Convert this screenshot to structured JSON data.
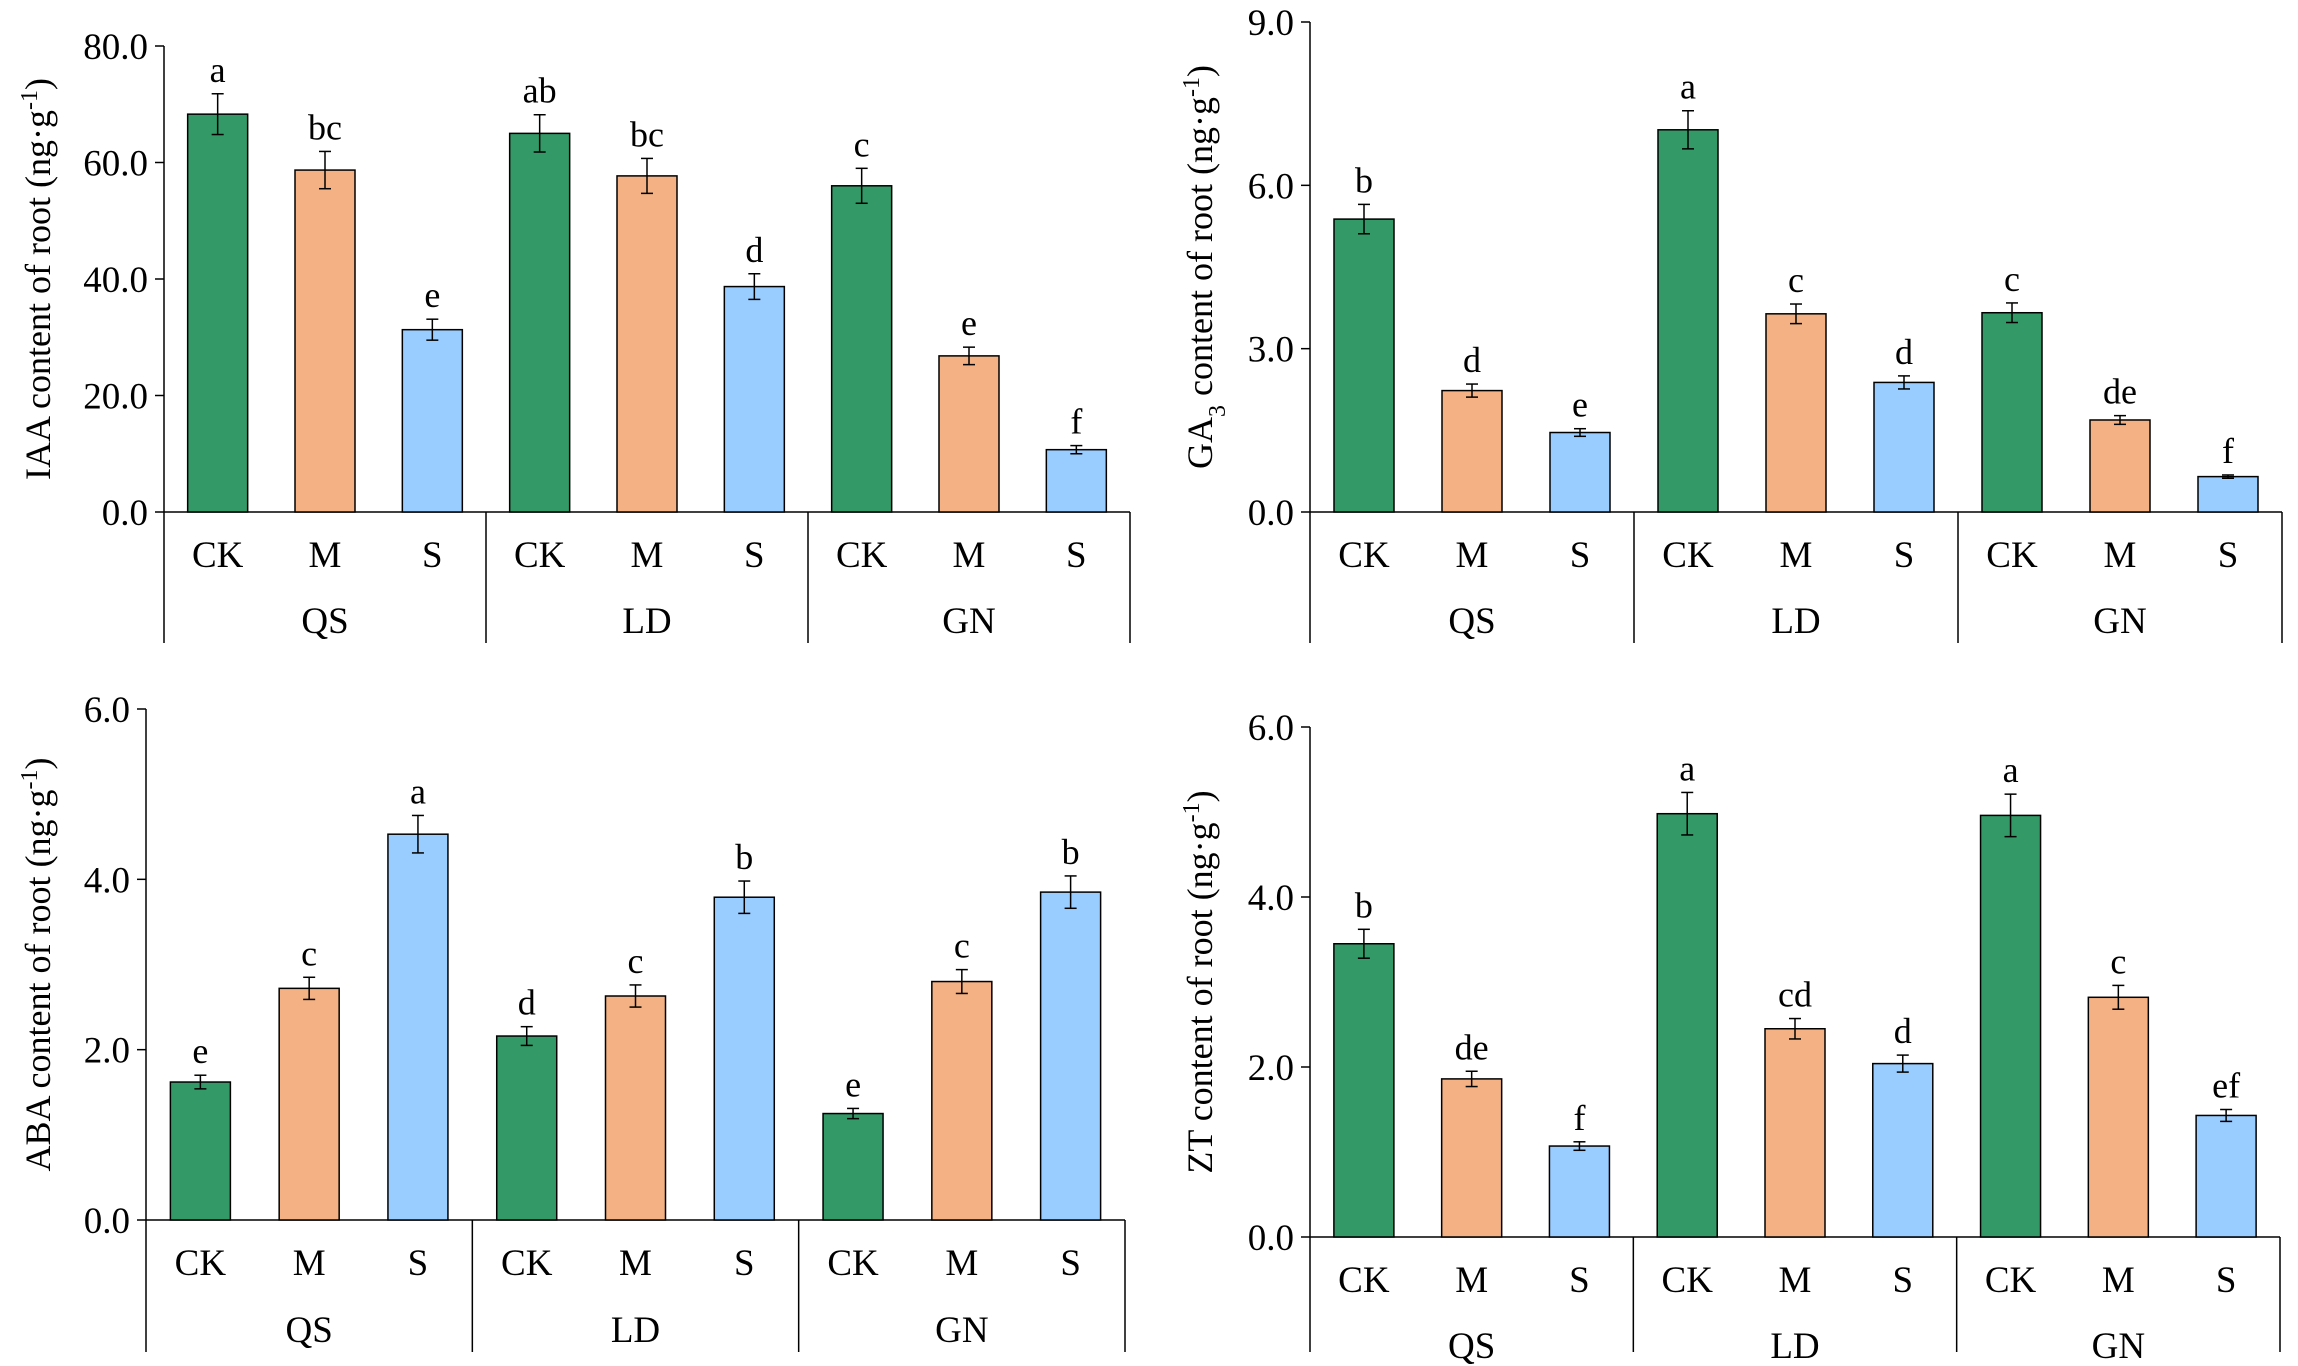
{
  "chart_data": [
    {
      "type": "bar",
      "ylabel": "IAA content of root (ng·g⁻¹)",
      "ylabel_parts": [
        {
          "t": "IAA content of root (ng·g"
        },
        {
          "t": "-1",
          "sup": true
        },
        {
          "t": ")"
        }
      ],
      "ylim": [
        0,
        80
      ],
      "yticks": [
        "0.0",
        "20.0",
        "40.0",
        "60.0",
        "80.0"
      ],
      "groups": [
        "QS",
        "LD",
        "GN"
      ],
      "treatments": [
        "CK",
        "M",
        "S"
      ],
      "values": [
        68.3,
        58.7,
        31.3,
        65.0,
        57.7,
        38.7,
        56.0,
        26.8,
        10.7
      ],
      "errors": [
        3.5,
        3.2,
        1.8,
        3.2,
        3.0,
        2.2,
        3.0,
        1.5,
        0.7
      ],
      "letters": [
        "a",
        "bc",
        "e",
        "ab",
        "bc",
        "d",
        "c",
        "e",
        "f"
      ]
    },
    {
      "type": "bar",
      "ylabel": "GA₃ content of root (ng·g⁻¹)",
      "ylabel_parts": [
        {
          "t": "GA"
        },
        {
          "t": "3",
          "sub": true
        },
        {
          "t": " content of root (ng·g"
        },
        {
          "t": "-1",
          "sup": true
        },
        {
          "t": ")"
        }
      ],
      "ylim": [
        0,
        9
      ],
      "yticks": [
        "0.0",
        "3.0",
        "6.0",
        "9.0"
      ],
      "groups": [
        "QS",
        "LD",
        "GN"
      ],
      "treatments": [
        "CK",
        "M",
        "S"
      ],
      "values": [
        5.38,
        2.23,
        1.46,
        7.02,
        3.64,
        2.38,
        3.66,
        1.69,
        0.65
      ],
      "errors": [
        0.27,
        0.12,
        0.07,
        0.35,
        0.18,
        0.12,
        0.18,
        0.08,
        0.03
      ],
      "letters": [
        "b",
        "d",
        "e",
        "a",
        "c",
        "d",
        "c",
        "de",
        "f"
      ]
    },
    {
      "type": "bar",
      "ylabel": "ABA content of root (ng·g⁻¹)",
      "ylabel_parts": [
        {
          "t": "ABA content of root (ng·g"
        },
        {
          "t": "-1",
          "sup": true
        },
        {
          "t": ")"
        }
      ],
      "ylim": [
        0,
        6
      ],
      "yticks": [
        "0.0",
        "2.0",
        "4.0",
        "6.0"
      ],
      "groups": [
        "QS",
        "LD",
        "GN"
      ],
      "treatments": [
        "CK",
        "M",
        "S"
      ],
      "values": [
        1.62,
        2.72,
        4.53,
        2.16,
        2.63,
        3.79,
        1.25,
        2.8,
        3.85
      ],
      "errors": [
        0.08,
        0.13,
        0.22,
        0.11,
        0.13,
        0.19,
        0.06,
        0.14,
        0.19
      ],
      "letters": [
        "e",
        "c",
        "a",
        "d",
        "c",
        "b",
        "e",
        "c",
        "b"
      ]
    },
    {
      "type": "bar",
      "ylabel": "ZT content of root (ng·g⁻¹)",
      "ylabel_parts": [
        {
          "t": "ZT content of root (ng·g"
        },
        {
          "t": "-1",
          "sup": true
        },
        {
          "t": ")"
        }
      ],
      "ylim": [
        0,
        6
      ],
      "yticks": [
        "0.0",
        "2.0",
        "4.0",
        "6.0"
      ],
      "groups": [
        "QS",
        "LD",
        "GN"
      ],
      "treatments": [
        "CK",
        "M",
        "S"
      ],
      "values": [
        3.45,
        1.86,
        1.07,
        4.98,
        2.45,
        2.04,
        4.96,
        2.82,
        1.43
      ],
      "errors": [
        0.17,
        0.09,
        0.05,
        0.25,
        0.12,
        0.1,
        0.25,
        0.14,
        0.07
      ],
      "letters": [
        "b",
        "de",
        "f",
        "a",
        "cd",
        "d",
        "a",
        "c",
        "ef"
      ]
    }
  ],
  "colors": {
    "CK": "#339966",
    "M": "#F4B183",
    "S": "#99CCFF"
  }
}
